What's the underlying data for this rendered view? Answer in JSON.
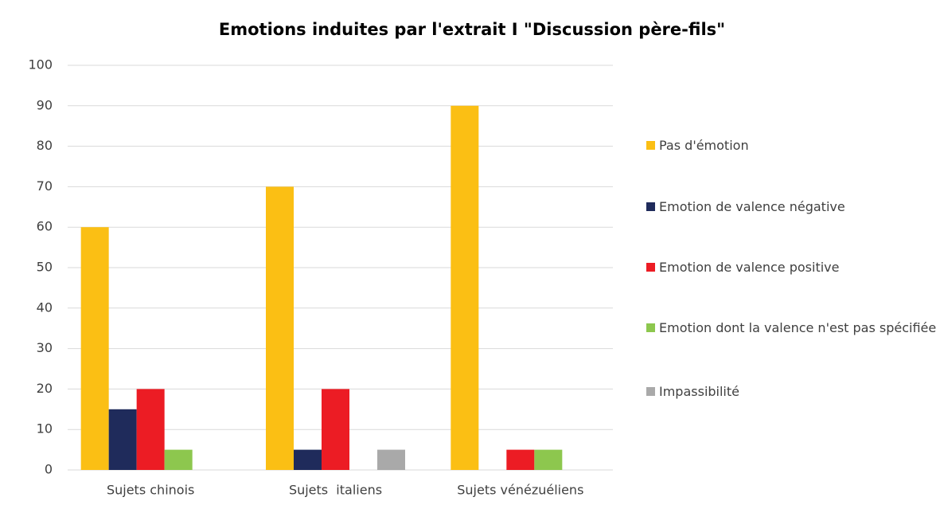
{
  "chart_data": {
    "type": "bar",
    "title": "Emotions induites par l'extrait I \"Discussion père-fils\"",
    "categories": [
      "Sujets chinois",
      "Sujets  italiens",
      "Sujets vénézuéliens"
    ],
    "series": [
      {
        "name": "Pas d'émotion",
        "color": "#fbbf14",
        "values": [
          60,
          70,
          90
        ]
      },
      {
        "name": "Emotion de valence négative",
        "color": "#1f2b5b",
        "values": [
          15,
          5,
          0
        ]
      },
      {
        "name": "Emotion de valence positive",
        "color": "#ec1c24",
        "values": [
          20,
          20,
          5
        ]
      },
      {
        "name": "Emotion dont la valence n'est pas spécifiée",
        "color": "#8dc74e",
        "values": [
          5,
          0,
          5
        ]
      },
      {
        "name": "Impassibilité",
        "color": "#a9a9a9",
        "values": [
          0,
          5,
          0
        ]
      }
    ],
    "ylim": [
      0,
      100
    ],
    "yticks": [
      0,
      10,
      20,
      30,
      40,
      50,
      60,
      70,
      80,
      90,
      100
    ],
    "grid": true,
    "legend": "right"
  }
}
